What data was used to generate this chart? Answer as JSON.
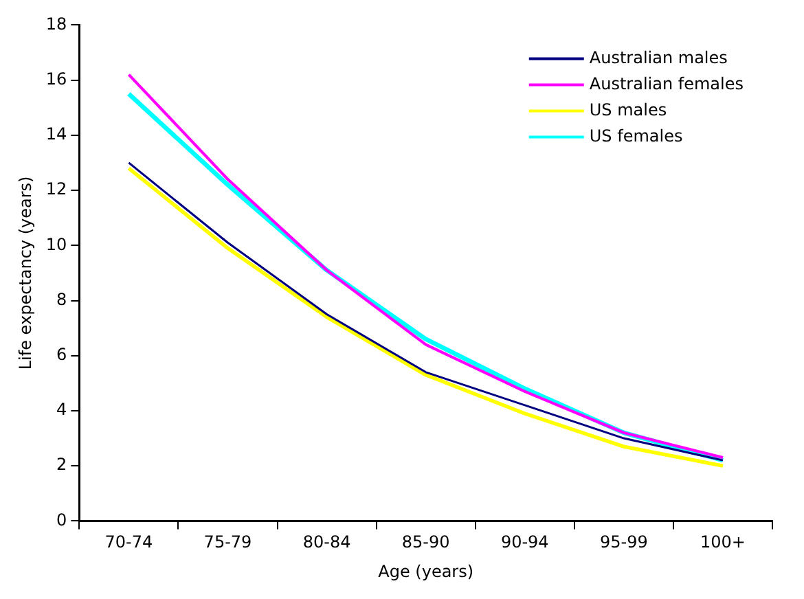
{
  "chart_data": {
    "type": "line",
    "xlabel": "Age (years)",
    "ylabel": "Life expectancy (years)",
    "categories": [
      "70-74",
      "75-79",
      "80-84",
      "85-90",
      "90-94",
      "95-99",
      "100+"
    ],
    "ylim": [
      0,
      18
    ],
    "yticks": [
      0,
      2,
      4,
      6,
      8,
      10,
      12,
      14,
      16,
      18
    ],
    "grid": false,
    "legend": "top right",
    "marker": "none",
    "line_style": "solid",
    "series": [
      {
        "name": "Australian males",
        "color": "#000080",
        "values": [
          13.0,
          10.1,
          7.5,
          5.4,
          4.2,
          3.0,
          2.2
        ]
      },
      {
        "name": "Australian females",
        "color": "#ff00ff",
        "values": [
          16.2,
          12.4,
          9.1,
          6.4,
          4.7,
          3.2,
          2.3
        ]
      },
      {
        "name": "US males",
        "color": "#ffff00",
        "values": [
          12.8,
          9.9,
          7.4,
          5.3,
          3.9,
          2.7,
          2.0
        ]
      },
      {
        "name": "US females",
        "color": "#00ffff",
        "values": [
          15.5,
          12.2,
          9.1,
          6.6,
          4.8,
          3.2,
          2.2
        ]
      }
    ]
  }
}
